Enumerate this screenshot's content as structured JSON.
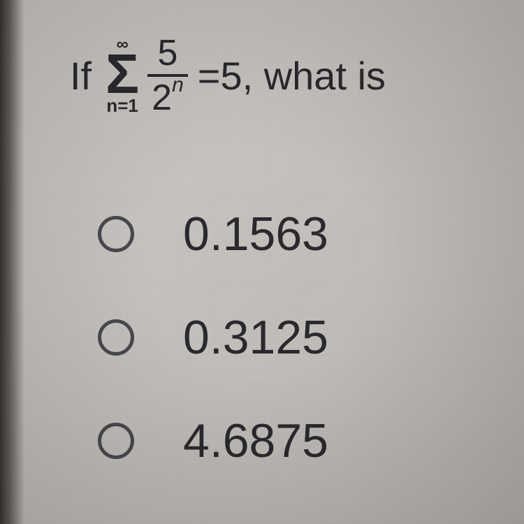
{
  "question": {
    "prefix": "If",
    "sigma_upper": "∞",
    "sigma_lower": "n=1",
    "fraction_numerator": "5",
    "fraction_denom_base": "2",
    "fraction_denom_exp": "n",
    "equals": "=5, what is",
    "font_color": "#2a2a30"
  },
  "options": [
    {
      "value": "0.1563"
    },
    {
      "value": "0.3125"
    },
    {
      "value": "4.6875"
    }
  ],
  "style": {
    "background_color": "#c8c4c0",
    "text_color": "#2a2a30",
    "radio_border_color": "#4a4a52",
    "option_fontsize": 68,
    "question_fontsize": 56
  }
}
